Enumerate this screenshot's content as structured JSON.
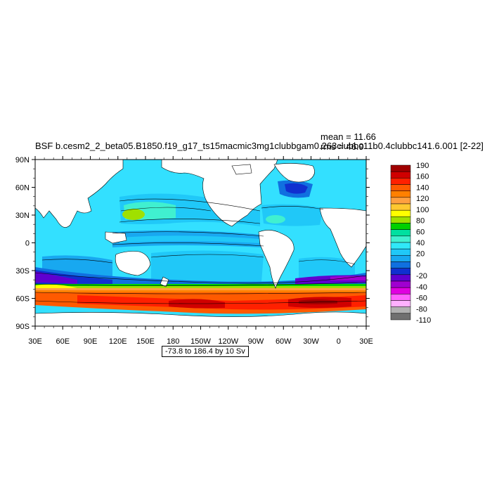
{
  "title": "BSF b.cesm2_2_beta05.B1850.f19_g17_ts15macmic3mg1clubbgam0.263clubbc11b0.4clubbc141.6.001 [2-22]",
  "stats": {
    "mean": "mean = 11.66",
    "rms": "rms = 46.9"
  },
  "contour_note": "-73.8 to 186.4 by 10 Sv",
  "lat_labels": [
    "90N",
    "60N",
    "30N",
    "0",
    "30S",
    "60S",
    "90S"
  ],
  "lon_labels": [
    "30E",
    "60E",
    "90E",
    "120E",
    "150E",
    "180",
    "150W",
    "120W",
    "90W",
    "60W",
    "30W",
    "0",
    "30E"
  ],
  "colorbar": {
    "labels": [
      "190",
      "160",
      "140",
      "120",
      "100",
      "80",
      "60",
      "40",
      "20",
      "0",
      "-20",
      "-40",
      "-60",
      "-80",
      "-110"
    ],
    "colors": [
      "#a00000",
      "#d00000",
      "#ff2000",
      "#ff5a00",
      "#ff8000",
      "#ffa040",
      "#ffc830",
      "#ffff00",
      "#a0e000",
      "#00d000",
      "#00e0a0",
      "#40f0d0",
      "#30e8f8",
      "#20c8f8",
      "#18a8f0",
      "#1070e0",
      "#1030d0",
      "#6000d0",
      "#a000d0",
      "#e000e0",
      "#ff60ff",
      "#ffb0ff",
      "#b0b0b0",
      "#707070"
    ]
  },
  "map": {
    "ocean_background": "#33e0ff",
    "land": "#ffffff"
  }
}
